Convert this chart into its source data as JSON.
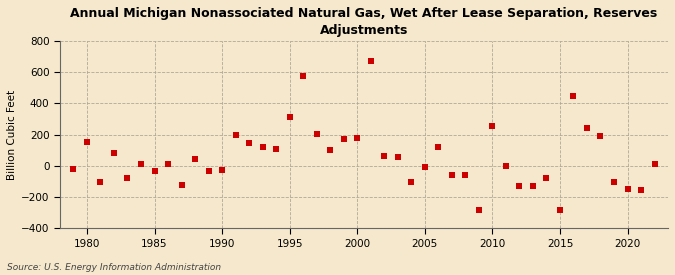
{
  "title": "Annual Michigan Nonassociated Natural Gas, Wet After Lease Separation, Reserves\nAdjustments",
  "ylabel": "Billion Cubic Feet",
  "source": "Source: U.S. Energy Information Administration",
  "outer_bg": "#f5e8cc",
  "plot_bg": "#f5e8cc",
  "marker_color": "#cc0000",
  "marker": "s",
  "marker_size": 4,
  "xlim": [
    1978,
    2023
  ],
  "ylim": [
    -400,
    800
  ],
  "yticks": [
    -400,
    -200,
    0,
    200,
    400,
    600,
    800
  ],
  "xticks": [
    1980,
    1985,
    1990,
    1995,
    2000,
    2005,
    2010,
    2015,
    2020
  ],
  "years": [
    1979,
    1980,
    1981,
    1982,
    1983,
    1984,
    1985,
    1986,
    1987,
    1988,
    1989,
    1990,
    1991,
    1992,
    1993,
    1994,
    1995,
    1996,
    1997,
    1998,
    1999,
    2000,
    2001,
    2002,
    2003,
    2004,
    2005,
    2006,
    2007,
    2008,
    2009,
    2010,
    2011,
    2012,
    2013,
    2014,
    2015,
    2016,
    2017,
    2018,
    2019,
    2020,
    2021,
    2022
  ],
  "values": [
    -20,
    155,
    -100,
    85,
    -75,
    10,
    -30,
    10,
    -120,
    45,
    -30,
    -25,
    200,
    145,
    120,
    110,
    315,
    575,
    205,
    100,
    175,
    180,
    670,
    65,
    55,
    -100,
    -10,
    120,
    -60,
    -60,
    -280,
    255,
    0,
    -130,
    -130,
    -80,
    -285,
    450,
    245,
    190,
    -100,
    -150,
    -155,
    10
  ]
}
